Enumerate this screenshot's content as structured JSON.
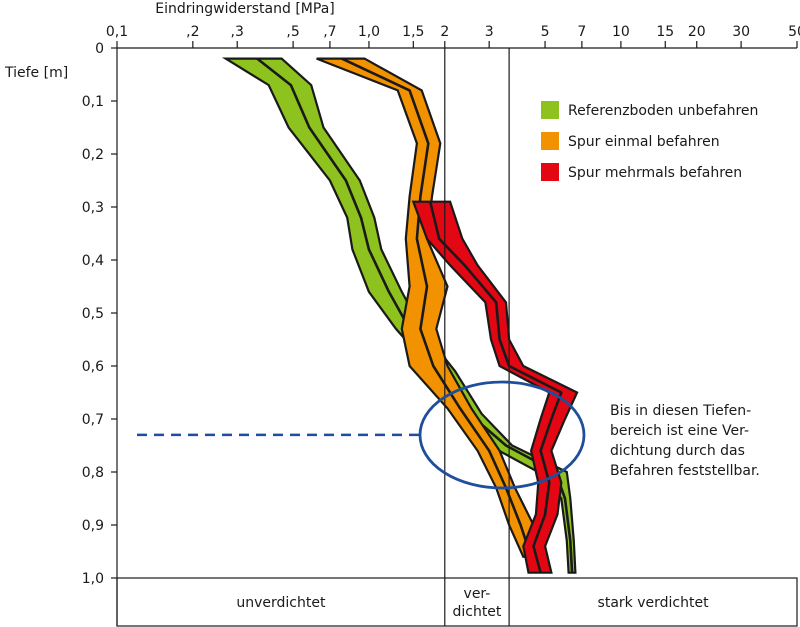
{
  "chart_data": {
    "type": "line",
    "subtype": "band",
    "title": "",
    "xlabel": "Eindringwiderstand [MPa]",
    "ylabel": "Tiefe [m]",
    "x_scale": "log",
    "xlim": [
      0.1,
      50
    ],
    "ylim": [
      0,
      1.0
    ],
    "y_inverted": true,
    "x_ticks": [
      {
        "value": 0.1,
        "label": "0,1"
      },
      {
        "value": 0.2,
        "label": ",2"
      },
      {
        "value": 0.3,
        "label": ",3"
      },
      {
        "value": 0.5,
        "label": ",5"
      },
      {
        "value": 0.7,
        "label": ",7"
      },
      {
        "value": 1.0,
        "label": "1,0"
      },
      {
        "value": 1.5,
        "label": "1,5"
      },
      {
        "value": 2,
        "label": "2"
      },
      {
        "value": 3,
        "label": "3"
      },
      {
        "value": 5,
        "label": "5"
      },
      {
        "value": 7,
        "label": "7"
      },
      {
        "value": 10,
        "label": "10"
      },
      {
        "value": 15,
        "label": "15"
      },
      {
        "value": 20,
        "label": "20"
      },
      {
        "value": 30,
        "label": "30"
      },
      {
        "value": 50,
        "label": "50"
      }
    ],
    "y_ticks": [
      {
        "value": 0,
        "label": "0"
      },
      {
        "value": 0.1,
        "label": "0,1"
      },
      {
        "value": 0.2,
        "label": "0,2"
      },
      {
        "value": 0.3,
        "label": "0,3"
      },
      {
        "value": 0.4,
        "label": "0,4"
      },
      {
        "value": 0.5,
        "label": "0,5"
      },
      {
        "value": 0.6,
        "label": "0,6"
      },
      {
        "value": 0.7,
        "label": "0,7"
      },
      {
        "value": 0.8,
        "label": "0,8"
      },
      {
        "value": 0.9,
        "label": "0,9"
      },
      {
        "value": 1.0,
        "label": "1,0"
      }
    ],
    "grid": false,
    "legend_position": "top-right",
    "series": [
      {
        "name": "Referenzboden unbefahren",
        "color": "#8dc21f",
        "depth": [
          0.02,
          0.07,
          0.15,
          0.25,
          0.32,
          0.38,
          0.46,
          0.53,
          0.61,
          0.69,
          0.75,
          0.8,
          0.85,
          0.93,
          0.99
        ],
        "mean": [
          0.36,
          0.49,
          0.58,
          0.81,
          0.93,
          1.0,
          1.2,
          1.45,
          2.0,
          2.5,
          3.5,
          5.5,
          6.0,
          6.3,
          6.4
        ],
        "lower": [
          0.27,
          0.4,
          0.48,
          0.7,
          0.82,
          0.86,
          1.0,
          1.28,
          1.8,
          2.2,
          3.0,
          4.7,
          5.8,
          6.1,
          6.2
        ],
        "upper": [
          0.45,
          0.59,
          0.66,
          0.92,
          1.05,
          1.12,
          1.35,
          1.62,
          2.2,
          2.8,
          3.7,
          6.1,
          6.3,
          6.5,
          6.6
        ]
      },
      {
        "name": "Spur einmal befahren",
        "color": "#f39200",
        "depth": [
          0.02,
          0.08,
          0.18,
          0.28,
          0.36,
          0.45,
          0.53,
          0.6,
          0.68,
          0.76,
          0.83,
          0.9,
          0.96
        ],
        "mean": [
          0.78,
          1.45,
          1.72,
          1.6,
          1.55,
          1.7,
          1.6,
          1.8,
          2.3,
          3.0,
          3.5,
          4.0,
          4.4
        ],
        "lower": [
          0.62,
          1.3,
          1.55,
          1.45,
          1.4,
          1.45,
          1.35,
          1.45,
          2.05,
          2.7,
          3.2,
          3.6,
          4.1
        ],
        "upper": [
          0.96,
          1.62,
          1.92,
          1.78,
          1.7,
          2.05,
          1.85,
          2.05,
          2.55,
          3.3,
          3.8,
          4.5,
          4.8
        ]
      },
      {
        "name": "Spur mehrmals befahren",
        "color": "#e30613",
        "depth": [
          0.29,
          0.36,
          0.41,
          0.48,
          0.55,
          0.6,
          0.65,
          0.7,
          0.76,
          0.82,
          0.88,
          0.94,
          0.99
        ],
        "mean": [
          1.75,
          1.9,
          2.4,
          3.2,
          3.3,
          3.6,
          5.8,
          5.3,
          4.8,
          5.2,
          5.0,
          4.5,
          4.8
        ],
        "lower": [
          1.5,
          1.7,
          2.1,
          2.9,
          3.05,
          3.3,
          5.2,
          4.8,
          4.4,
          4.7,
          4.6,
          4.1,
          4.3
        ],
        "upper": [
          2.1,
          2.35,
          2.7,
          3.5,
          3.6,
          4.1,
          6.7,
          6.0,
          5.3,
          5.8,
          5.6,
          5.0,
          5.3
        ]
      }
    ],
    "zones": [
      {
        "label": "unverdichtet",
        "from": 0.1,
        "to": 2
      },
      {
        "label": "ver-\ndichtet",
        "from": 2,
        "to": 3.6
      },
      {
        "label": "stark verdichtet",
        "from": 3.6,
        "to": 50
      }
    ],
    "reference_line": {
      "depth": 0.73,
      "color": "#1f4e9c"
    },
    "annotation": "Bis in diesen Tiefen-\nbereich ist eine Ver-\ndichtung durch das\nBefahren feststellbar.",
    "ellipse_color": "#1f4e9c"
  }
}
